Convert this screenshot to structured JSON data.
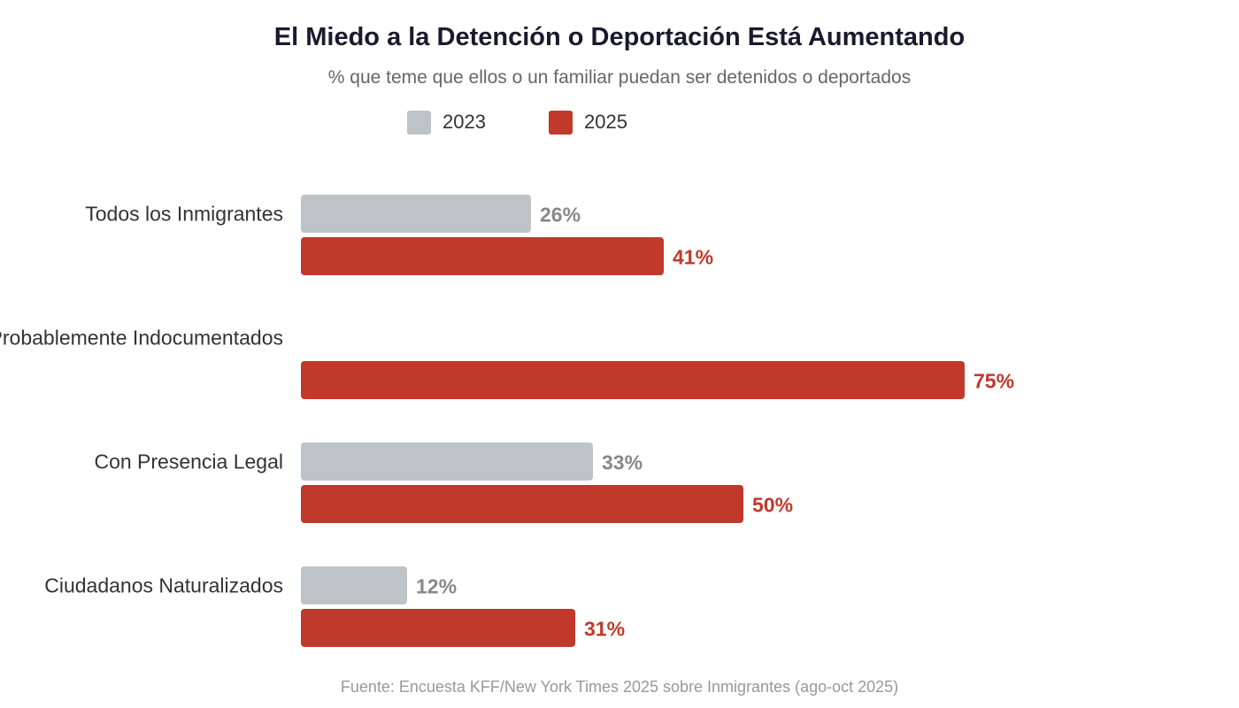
{
  "chart_data": {
    "type": "bar",
    "orientation": "horizontal",
    "title": "El Miedo a la Detención o Deportación Está Aumentando",
    "subtitle": "% que teme que ellos o un familiar puedan ser detenidos o deportados",
    "categories": [
      "Todos los Inmigrantes",
      "Probablemente Indocumentados",
      "Con Presencia Legal",
      "Ciudadanos Naturalizados"
    ],
    "series": [
      {
        "name": "2023",
        "color": "#bdc3c7",
        "label_color": "#888888",
        "values": [
          26,
          null,
          33,
          12
        ],
        "labels": [
          "26%",
          "",
          "33%",
          "12%"
        ]
      },
      {
        "name": "2025",
        "color": "#c0392b",
        "label_color": "#c0392b",
        "values": [
          41,
          75,
          50,
          31
        ],
        "labels": [
          "41%",
          "75%",
          "50%",
          "31%"
        ]
      }
    ],
    "xlim": [
      0,
      100
    ],
    "grid": false,
    "legend": "top-center",
    "source": "Fuente: Encuesta KFF/New York Times 2025 sobre Inmigrantes (ago-oct 2025)"
  }
}
